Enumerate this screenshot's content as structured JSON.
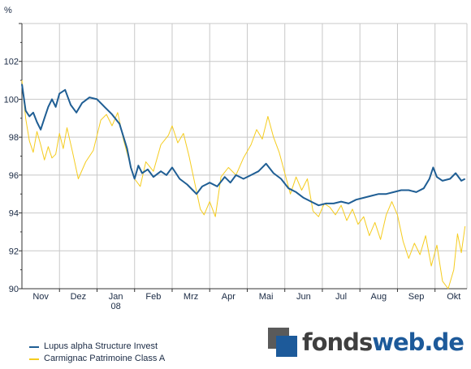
{
  "chart_data": {
    "type": "line",
    "unit_label": "%",
    "ylim": [
      90,
      104
    ],
    "y_ticks": [
      90,
      92,
      94,
      96,
      98,
      100,
      102
    ],
    "x_ticks": [
      {
        "label": "Nov",
        "x": 0.5
      },
      {
        "label": "Dez",
        "x": 1.5
      },
      {
        "label": "Jan",
        "sublabel": "08",
        "x": 2.5
      },
      {
        "label": "Feb",
        "x": 3.5
      },
      {
        "label": "Mrz",
        "x": 4.5
      },
      {
        "label": "Apr",
        "x": 5.5
      },
      {
        "label": "Mai",
        "x": 6.5
      },
      {
        "label": "Jun",
        "x": 7.5
      },
      {
        "label": "Jul",
        "x": 8.5
      },
      {
        "label": "Aug",
        "x": 9.5
      },
      {
        "label": "Sep",
        "x": 10.5
      },
      {
        "label": "Okt",
        "x": 11.5
      }
    ],
    "xlim": [
      0,
      11.85
    ],
    "grid": true,
    "legend_position": "bottom-left",
    "series": [
      {
        "name": "Lupus alpha Structure Invest",
        "color": "#1f5e94",
        "points": [
          [
            0,
            100.8
          ],
          [
            0.1,
            99.4
          ],
          [
            0.2,
            99.1
          ],
          [
            0.3,
            99.3
          ],
          [
            0.4,
            98.8
          ],
          [
            0.5,
            98.4
          ],
          [
            0.6,
            99.0
          ],
          [
            0.7,
            99.6
          ],
          [
            0.8,
            100.0
          ],
          [
            0.9,
            99.6
          ],
          [
            1.0,
            100.3
          ],
          [
            1.15,
            100.5
          ],
          [
            1.3,
            99.7
          ],
          [
            1.45,
            99.3
          ],
          [
            1.6,
            99.8
          ],
          [
            1.8,
            100.1
          ],
          [
            2.0,
            100.0
          ],
          [
            2.2,
            99.6
          ],
          [
            2.4,
            99.2
          ],
          [
            2.6,
            98.7
          ],
          [
            2.8,
            97.4
          ],
          [
            2.9,
            96.4
          ],
          [
            3.0,
            95.8
          ],
          [
            3.1,
            96.5
          ],
          [
            3.2,
            96.1
          ],
          [
            3.35,
            96.3
          ],
          [
            3.5,
            95.9
          ],
          [
            3.7,
            96.2
          ],
          [
            3.85,
            96.0
          ],
          [
            4.0,
            96.4
          ],
          [
            4.2,
            95.8
          ],
          [
            4.4,
            95.5
          ],
          [
            4.55,
            95.2
          ],
          [
            4.65,
            95.0
          ],
          [
            4.8,
            95.4
          ],
          [
            5.0,
            95.6
          ],
          [
            5.2,
            95.4
          ],
          [
            5.4,
            95.9
          ],
          [
            5.55,
            95.6
          ],
          [
            5.7,
            96.0
          ],
          [
            5.9,
            95.8
          ],
          [
            6.1,
            96.0
          ],
          [
            6.3,
            96.2
          ],
          [
            6.5,
            96.6
          ],
          [
            6.7,
            96.1
          ],
          [
            6.9,
            95.8
          ],
          [
            7.1,
            95.3
          ],
          [
            7.3,
            95.1
          ],
          [
            7.5,
            94.8
          ],
          [
            7.7,
            94.6
          ],
          [
            7.9,
            94.4
          ],
          [
            8.1,
            94.5
          ],
          [
            8.3,
            94.5
          ],
          [
            8.5,
            94.6
          ],
          [
            8.7,
            94.5
          ],
          [
            8.9,
            94.7
          ],
          [
            9.1,
            94.8
          ],
          [
            9.3,
            94.9
          ],
          [
            9.5,
            95.0
          ],
          [
            9.7,
            95.0
          ],
          [
            9.9,
            95.1
          ],
          [
            10.1,
            95.2
          ],
          [
            10.3,
            95.2
          ],
          [
            10.5,
            95.1
          ],
          [
            10.7,
            95.3
          ],
          [
            10.85,
            95.8
          ],
          [
            10.95,
            96.4
          ],
          [
            11.05,
            95.9
          ],
          [
            11.2,
            95.7
          ],
          [
            11.4,
            95.8
          ],
          [
            11.55,
            96.1
          ],
          [
            11.7,
            95.7
          ],
          [
            11.8,
            95.8
          ]
        ]
      },
      {
        "name": "Carmignac Patrimoine Class A",
        "color": "#f5cc1e",
        "points": [
          [
            0,
            101.0
          ],
          [
            0.1,
            99.0
          ],
          [
            0.2,
            97.8
          ],
          [
            0.3,
            97.2
          ],
          [
            0.4,
            98.3
          ],
          [
            0.5,
            97.6
          ],
          [
            0.6,
            96.8
          ],
          [
            0.7,
            97.5
          ],
          [
            0.8,
            96.9
          ],
          [
            0.9,
            97.1
          ],
          [
            1.0,
            98.2
          ],
          [
            1.1,
            97.4
          ],
          [
            1.2,
            98.5
          ],
          [
            1.35,
            97.2
          ],
          [
            1.5,
            95.8
          ],
          [
            1.7,
            96.7
          ],
          [
            1.9,
            97.3
          ],
          [
            2.1,
            98.9
          ],
          [
            2.25,
            99.2
          ],
          [
            2.4,
            98.6
          ],
          [
            2.55,
            99.3
          ],
          [
            2.7,
            97.9
          ],
          [
            2.85,
            96.8
          ],
          [
            3.0,
            95.8
          ],
          [
            3.15,
            95.4
          ],
          [
            3.3,
            96.7
          ],
          [
            3.5,
            96.2
          ],
          [
            3.7,
            97.6
          ],
          [
            3.9,
            98.1
          ],
          [
            4.0,
            98.6
          ],
          [
            4.15,
            97.7
          ],
          [
            4.3,
            98.2
          ],
          [
            4.45,
            97.0
          ],
          [
            4.6,
            95.6
          ],
          [
            4.75,
            94.2
          ],
          [
            4.85,
            93.9
          ],
          [
            5.0,
            94.6
          ],
          [
            5.15,
            93.8
          ],
          [
            5.3,
            95.9
          ],
          [
            5.5,
            96.4
          ],
          [
            5.7,
            96.0
          ],
          [
            5.9,
            96.9
          ],
          [
            6.1,
            97.6
          ],
          [
            6.25,
            98.4
          ],
          [
            6.4,
            97.9
          ],
          [
            6.55,
            99.1
          ],
          [
            6.7,
            98.0
          ],
          [
            6.85,
            97.2
          ],
          [
            7.0,
            96.1
          ],
          [
            7.15,
            95.0
          ],
          [
            7.3,
            95.9
          ],
          [
            7.45,
            95.2
          ],
          [
            7.6,
            95.8
          ],
          [
            7.75,
            94.1
          ],
          [
            7.9,
            93.8
          ],
          [
            8.05,
            94.5
          ],
          [
            8.2,
            94.3
          ],
          [
            8.35,
            93.9
          ],
          [
            8.5,
            94.4
          ],
          [
            8.65,
            93.6
          ],
          [
            8.8,
            94.2
          ],
          [
            8.95,
            93.4
          ],
          [
            9.1,
            93.8
          ],
          [
            9.25,
            92.8
          ],
          [
            9.4,
            93.5
          ],
          [
            9.55,
            92.6
          ],
          [
            9.7,
            93.9
          ],
          [
            9.85,
            94.6
          ],
          [
            10.0,
            93.9
          ],
          [
            10.15,
            92.5
          ],
          [
            10.3,
            91.6
          ],
          [
            10.45,
            92.4
          ],
          [
            10.6,
            91.8
          ],
          [
            10.75,
            92.8
          ],
          [
            10.9,
            91.2
          ],
          [
            11.05,
            92.3
          ],
          [
            11.2,
            90.4
          ],
          [
            11.35,
            90.0
          ],
          [
            11.5,
            91.0
          ],
          [
            11.6,
            92.9
          ],
          [
            11.7,
            91.9
          ],
          [
            11.8,
            93.3
          ]
        ]
      }
    ]
  },
  "brand": {
    "part1": "fonds",
    "part2": "web.de"
  }
}
